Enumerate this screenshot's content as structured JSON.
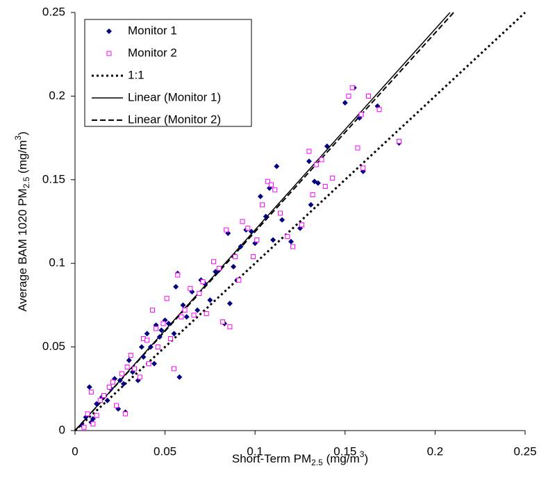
{
  "chart_data": {
    "type": "scatter",
    "x_label": [
      "Short-Term PM",
      "2.5",
      " (mg/m",
      "3",
      ")"
    ],
    "y_label": [
      "Average BAM 1020 PM",
      "2.5",
      " (mg/m",
      "3",
      ")"
    ],
    "xlim": [
      0,
      0.25
    ],
    "ylim": [
      0,
      0.25
    ],
    "xticks": [
      0,
      0.05,
      0.1,
      0.15,
      0.2,
      0.25
    ],
    "yticks": [
      0,
      0.05,
      0.1,
      0.15,
      0.2,
      0.25
    ],
    "legend": "upper left",
    "series": [
      {
        "name": "Monitor 1",
        "color": "#000080",
        "marker": "diamond",
        "x": [
          0.004,
          0.006,
          0.008,
          0.009,
          0.01,
          0.012,
          0.015,
          0.018,
          0.02,
          0.022,
          0.024,
          0.025,
          0.027,
          0.028,
          0.03,
          0.032,
          0.035,
          0.037,
          0.038,
          0.04,
          0.042,
          0.044,
          0.045,
          0.047,
          0.048,
          0.05,
          0.052,
          0.055,
          0.056,
          0.057,
          0.058,
          0.06,
          0.062,
          0.065,
          0.068,
          0.07,
          0.072,
          0.075,
          0.078,
          0.08,
          0.083,
          0.085,
          0.086,
          0.088,
          0.09,
          0.092,
          0.095,
          0.098,
          0.1,
          0.103,
          0.106,
          0.108,
          0.11,
          0.112,
          0.115,
          0.12,
          0.125,
          0.13,
          0.131,
          0.133,
          0.135,
          0.14,
          0.15,
          0.155,
          0.158,
          0.16,
          0.163,
          0.168,
          0.18
        ],
        "values": [
          0.003,
          0.008,
          0.026,
          0.005,
          0.007,
          0.016,
          0.02,
          0.018,
          0.025,
          0.031,
          0.013,
          0.03,
          0.028,
          0.011,
          0.042,
          0.035,
          0.03,
          0.05,
          0.044,
          0.058,
          0.05,
          0.04,
          0.063,
          0.056,
          0.06,
          0.066,
          0.064,
          0.058,
          0.086,
          0.094,
          0.032,
          0.075,
          0.068,
          0.083,
          0.072,
          0.09,
          0.088,
          0.078,
          0.095,
          0.096,
          0.064,
          0.118,
          0.076,
          0.098,
          0.09,
          0.11,
          0.12,
          0.119,
          0.112,
          0.14,
          0.128,
          0.145,
          0.114,
          0.158,
          0.126,
          0.113,
          0.121,
          0.161,
          0.135,
          0.149,
          0.148,
          0.17,
          0.196,
          0.205,
          0.187,
          0.155,
          0.2,
          0.194,
          0.172
        ]
      },
      {
        "name": "Monitor 2",
        "color": "#ff00ff",
        "marker": "square",
        "x": [
          0.005,
          0.007,
          0.009,
          0.01,
          0.012,
          0.014,
          0.016,
          0.019,
          0.021,
          0.023,
          0.026,
          0.028,
          0.029,
          0.031,
          0.033,
          0.036,
          0.038,
          0.04,
          0.041,
          0.043,
          0.045,
          0.046,
          0.049,
          0.051,
          0.053,
          0.055,
          0.057,
          0.059,
          0.061,
          0.064,
          0.066,
          0.069,
          0.071,
          0.073,
          0.077,
          0.08,
          0.082,
          0.084,
          0.086,
          0.089,
          0.091,
          0.093,
          0.096,
          0.099,
          0.101,
          0.104,
          0.107,
          0.109,
          0.111,
          0.114,
          0.118,
          0.121,
          0.126,
          0.13,
          0.132,
          0.134,
          0.137,
          0.139,
          0.143,
          0.152,
          0.154,
          0.157,
          0.159,
          0.16,
          0.163,
          0.169,
          0.18
        ],
        "values": [
          0.002,
          0.01,
          0.023,
          0.004,
          0.009,
          0.018,
          0.021,
          0.026,
          0.029,
          0.015,
          0.034,
          0.01,
          0.038,
          0.045,
          0.037,
          0.032,
          0.055,
          0.054,
          0.04,
          0.072,
          0.061,
          0.05,
          0.064,
          0.079,
          0.055,
          0.037,
          0.093,
          0.068,
          0.072,
          0.085,
          0.069,
          0.082,
          0.089,
          0.07,
          0.101,
          0.097,
          0.065,
          0.12,
          0.062,
          0.104,
          0.09,
          0.125,
          0.121,
          0.104,
          0.114,
          0.135,
          0.149,
          0.147,
          0.144,
          0.13,
          0.116,
          0.11,
          0.123,
          0.167,
          0.141,
          0.159,
          0.162,
          0.146,
          0.151,
          0.2,
          0.205,
          0.169,
          0.189,
          0.157,
          0.2,
          0.192,
          0.173
        ]
      },
      {
        "name": "1:1",
        "color": "#000000",
        "line": "dotted",
        "x": [
          0,
          0.25
        ],
        "values": [
          0,
          0.25
        ]
      },
      {
        "name": "Linear (Monitor 1)",
        "color": "#000000",
        "line": "solid",
        "x": [
          0,
          0.2083
        ],
        "values": [
          0,
          0.25
        ]
      },
      {
        "name": "Linear (Monitor 2)",
        "color": "#000000",
        "line": "dashed",
        "x": [
          0,
          0.2103
        ],
        "values": [
          0,
          0.25
        ]
      }
    ]
  }
}
